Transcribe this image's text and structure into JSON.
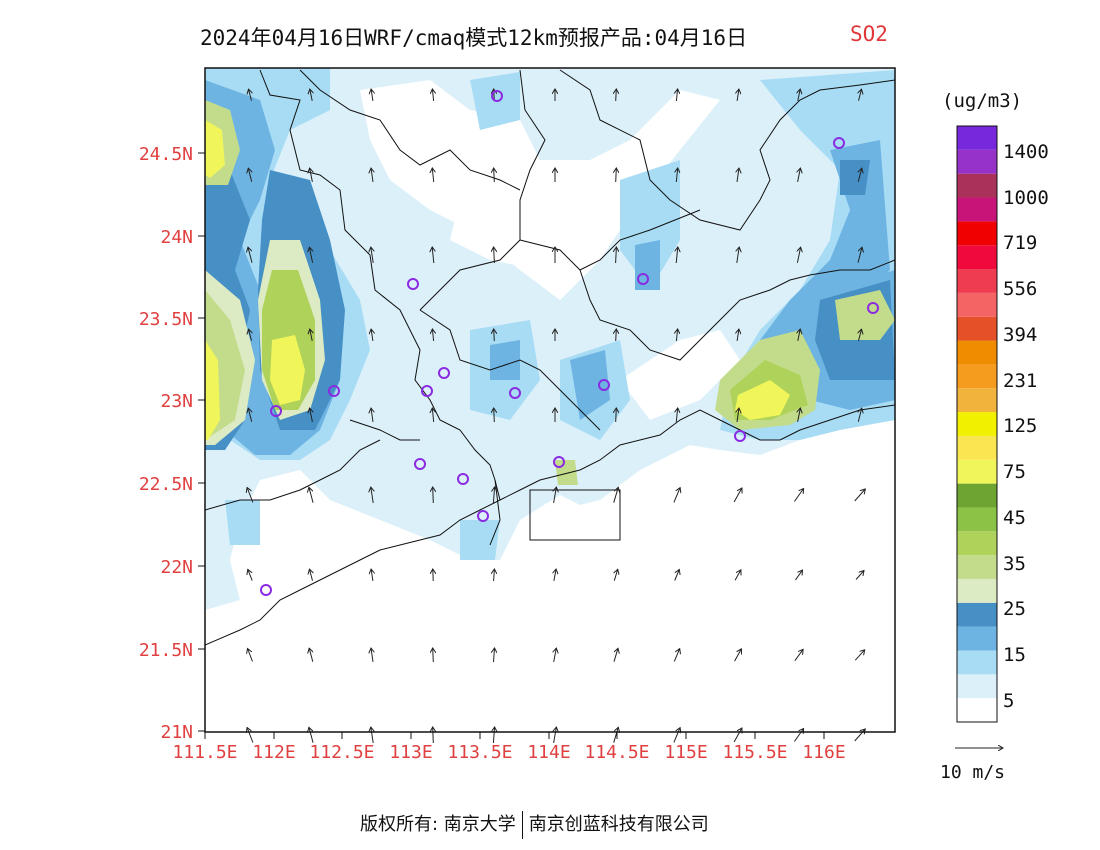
{
  "title": "2024年04月16日WRF/cmaq模式12km预报产品:04月16日",
  "species": "SO2",
  "unit": "(ug/m3)",
  "lat_labels": [
    "24.5N",
    "24N",
    "23.5N",
    "23N",
    "22.5N",
    "22N",
    "21.5N",
    "21N"
  ],
  "lon_labels": [
    "111.5E",
    "112E",
    "112.5E",
    "113E",
    "113.5E",
    "114E",
    "114.5E",
    "115E",
    "115.5E",
    "116E"
  ],
  "legend": {
    "labels": [
      "1400",
      "1000",
      "719",
      "556",
      "394",
      "231",
      "125",
      "75",
      "45",
      "35",
      "25",
      "15",
      "5"
    ],
    "colors": [
      "#ffffff",
      "#dcf0fa",
      "#a8dcf5",
      "#6eb4e2",
      "#4690c6",
      "#dcebc3",
      "#c3dc8c",
      "#afd25a",
      "#8cc346",
      "#6ea532",
      "#f0f55a",
      "#fae650",
      "#f0f000",
      "#f0b43c",
      "#f59b1e",
      "#f08c00",
      "#e65028",
      "#f56464",
      "#f03c50",
      "#f00a3c",
      "#f00000",
      "#c81478",
      "#aa325a",
      "#9632c8",
      "#7828dc"
    ]
  },
  "wind_ref": {
    "label": "10 m/s"
  },
  "footer": {
    "left": "版权所有: 南京大学",
    "right": "南京创蓝科技有限公司"
  }
}
